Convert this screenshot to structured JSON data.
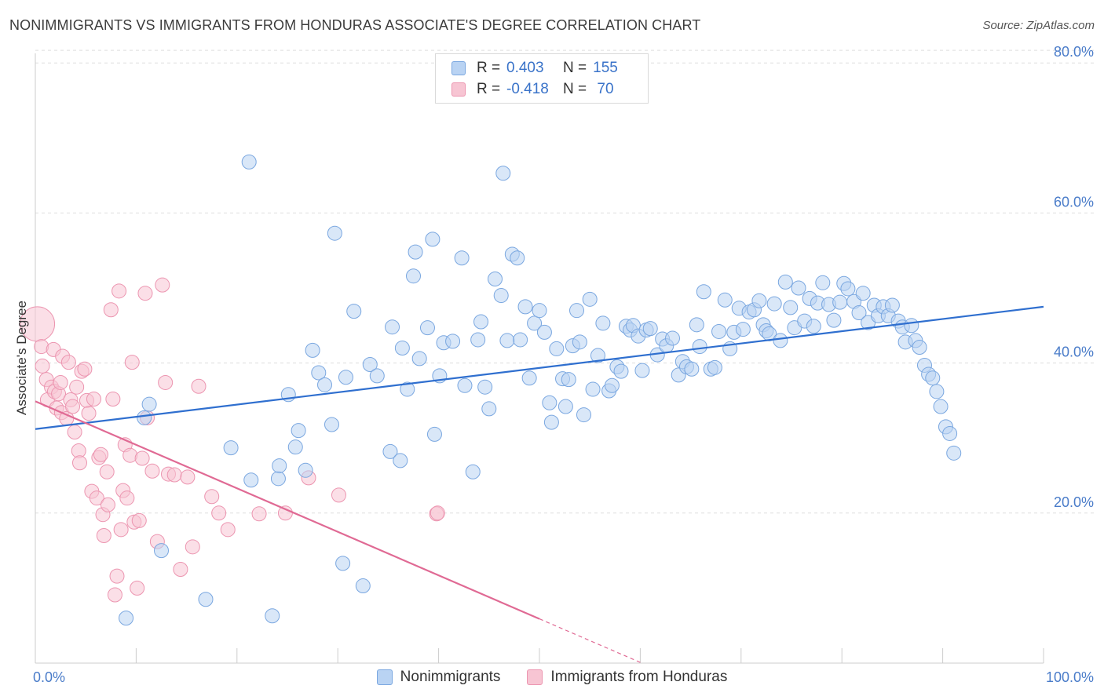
{
  "title": "NONIMMIGRANTS VS IMMIGRANTS FROM HONDURAS ASSOCIATE'S DEGREE CORRELATION CHART",
  "source": "Source: ZipAtlas.com",
  "legend": {
    "rows": [
      {
        "r_label": "R =",
        "r_value": "0.403",
        "n_label": "N =",
        "n_value": "155"
      },
      {
        "r_label": "R =",
        "r_value": "-0.418",
        "n_label": "N =",
        "n_value": "70"
      }
    ]
  },
  "bottom_legend": {
    "series1": "Nonimmigrants",
    "series2": "Immigrants from Honduras"
  },
  "colors": {
    "blue_fill": "#b9d3f3",
    "blue_stroke": "#7aa7e0",
    "blue_line": "#2f6fcf",
    "pink_fill": "#f7c5d3",
    "pink_stroke": "#ec95b0",
    "pink_line": "#e06a94",
    "tick_text": "#4a7cc9",
    "grid": "#dddddd"
  },
  "chart_data": {
    "type": "scatter",
    "title": "NONIMMIGRANTS VS IMMIGRANTS FROM HONDURAS ASSOCIATE'S DEGREE CORRELATION CHART",
    "xlabel": "",
    "ylabel": "Associate's Degree",
    "xlim": [
      0,
      100
    ],
    "ylim": [
      0,
      82
    ],
    "x_tick_labels": [
      "0.0%",
      "100.0%"
    ],
    "y_ticks": [
      20,
      40,
      60,
      80
    ],
    "y_tick_labels": [
      "20.0%",
      "40.0%",
      "60.0%",
      "80.0%"
    ],
    "grid": true,
    "series": [
      {
        "name": "Nonimmigrants",
        "R": 0.403,
        "N": 155,
        "trend": {
          "x": [
            0,
            100
          ],
          "y": [
            31.2,
            47.5
          ]
        },
        "points": [
          [
            11.3,
            34.5
          ],
          [
            10.8,
            32.7
          ],
          [
            12.5,
            15.0
          ],
          [
            9,
            6.0
          ],
          [
            16.9,
            8.5
          ],
          [
            19.4,
            28.7
          ],
          [
            21.2,
            66.8
          ],
          [
            21.4,
            24.4
          ],
          [
            23.5,
            6.3
          ],
          [
            24.1,
            24.6
          ],
          [
            24.2,
            26.3
          ],
          [
            25.1,
            35.8
          ],
          [
            25.8,
            28.8
          ],
          [
            26.1,
            31.0
          ],
          [
            26.8,
            25.7
          ],
          [
            27.5,
            41.7
          ],
          [
            28.1,
            38.7
          ],
          [
            28.7,
            37.1
          ],
          [
            29.4,
            31.8
          ],
          [
            29.7,
            57.3
          ],
          [
            30.5,
            13.3
          ],
          [
            30.8,
            38.1
          ],
          [
            31.6,
            46.9
          ],
          [
            32.5,
            10.3
          ],
          [
            33.2,
            39.8
          ],
          [
            33.9,
            38.3
          ],
          [
            35.2,
            28.2
          ],
          [
            35.4,
            44.8
          ],
          [
            36.2,
            27.0
          ],
          [
            36.4,
            42.0
          ],
          [
            36.9,
            36.5
          ],
          [
            37.5,
            51.6
          ],
          [
            37.7,
            54.8
          ],
          [
            38.1,
            40.6
          ],
          [
            38.9,
            44.7
          ],
          [
            39.4,
            56.5
          ],
          [
            39.6,
            30.5
          ],
          [
            40.1,
            38.3
          ],
          [
            40.5,
            42.7
          ],
          [
            41.4,
            42.9
          ],
          [
            42.3,
            54.0
          ],
          [
            42.6,
            37.0
          ],
          [
            43.4,
            25.5
          ],
          [
            43.9,
            43.1
          ],
          [
            44.2,
            45.5
          ],
          [
            44.6,
            36.8
          ],
          [
            45,
            33.9
          ],
          [
            45.6,
            51.2
          ],
          [
            46.2,
            49.0
          ],
          [
            46.4,
            65.3
          ],
          [
            46.8,
            43.0
          ],
          [
            47.3,
            54.5
          ],
          [
            47.8,
            54.0
          ],
          [
            48.1,
            43.1
          ],
          [
            48.6,
            47.5
          ],
          [
            49,
            38.0
          ],
          [
            49.5,
            45.3
          ],
          [
            50,
            47.0
          ],
          [
            50.5,
            44.1
          ],
          [
            51,
            34.7
          ],
          [
            51.2,
            32.1
          ],
          [
            51.7,
            41.9
          ],
          [
            52.3,
            37.9
          ],
          [
            52.6,
            34.2
          ],
          [
            52.9,
            37.8
          ],
          [
            53.3,
            42.3
          ],
          [
            53.7,
            47.0
          ],
          [
            54,
            42.8
          ],
          [
            54.4,
            33.1
          ],
          [
            55,
            48.5
          ],
          [
            55.3,
            36.5
          ],
          [
            55.8,
            41.0
          ],
          [
            56.3,
            45.3
          ],
          [
            56.9,
            36.3
          ],
          [
            57.2,
            37.0
          ],
          [
            57.7,
            39.5
          ],
          [
            58.1,
            38.9
          ],
          [
            58.6,
            44.9
          ],
          [
            59,
            44.4
          ],
          [
            59.3,
            45.0
          ],
          [
            59.8,
            43.6
          ],
          [
            60.2,
            39.0
          ],
          [
            60.6,
            44.4
          ],
          [
            61,
            44.6
          ],
          [
            61.7,
            41.1
          ],
          [
            62.2,
            43.2
          ],
          [
            62.6,
            42.3
          ],
          [
            63.2,
            43.3
          ],
          [
            63.8,
            38.4
          ],
          [
            64.2,
            40.2
          ],
          [
            64.6,
            39.5
          ],
          [
            65.1,
            39.2
          ],
          [
            65.6,
            45.1
          ],
          [
            65.9,
            42.2
          ],
          [
            66.3,
            49.5
          ],
          [
            67,
            39.2
          ],
          [
            67.4,
            39.4
          ],
          [
            67.8,
            44.2
          ],
          [
            68.4,
            48.4
          ],
          [
            68.9,
            41.9
          ],
          [
            69.3,
            44.1
          ],
          [
            69.8,
            47.3
          ],
          [
            70.2,
            44.5
          ],
          [
            70.8,
            46.8
          ],
          [
            71.3,
            47.1
          ],
          [
            71.8,
            48.3
          ],
          [
            72.2,
            45.1
          ],
          [
            72.5,
            44.3
          ],
          [
            72.8,
            43.9
          ],
          [
            73.3,
            47.9
          ],
          [
            73.9,
            43.0
          ],
          [
            74.4,
            50.8
          ],
          [
            74.9,
            47.4
          ],
          [
            75.3,
            44.7
          ],
          [
            75.7,
            50.0
          ],
          [
            76.3,
            45.6
          ],
          [
            76.8,
            48.6
          ],
          [
            77.2,
            44.9
          ],
          [
            77.6,
            48.0
          ],
          [
            78.1,
            50.7
          ],
          [
            78.7,
            47.8
          ],
          [
            79.2,
            45.7
          ],
          [
            79.8,
            48.1
          ],
          [
            80.2,
            50.6
          ],
          [
            80.6,
            49.9
          ],
          [
            81.2,
            48.2
          ],
          [
            81.7,
            46.7
          ],
          [
            82.1,
            49.3
          ],
          [
            82.6,
            45.4
          ],
          [
            83.2,
            47.7
          ],
          [
            83.6,
            46.3
          ],
          [
            84.1,
            47.5
          ],
          [
            84.6,
            46.3
          ],
          [
            85,
            47.7
          ],
          [
            85.6,
            45.6
          ],
          [
            86,
            44.8
          ],
          [
            86.3,
            42.8
          ],
          [
            86.9,
            45.0
          ],
          [
            87.3,
            43.0
          ],
          [
            87.7,
            42.1
          ],
          [
            88.2,
            39.7
          ],
          [
            88.6,
            38.5
          ],
          [
            89,
            38.0
          ],
          [
            89.4,
            36.2
          ],
          [
            89.8,
            34.2
          ],
          [
            90.3,
            31.5
          ],
          [
            90.7,
            30.6
          ],
          [
            91.1,
            28.0
          ]
        ]
      },
      {
        "name": "Immigrants from Honduras",
        "R": -0.418,
        "N": 70,
        "trend": {
          "x": [
            0,
            50
          ],
          "y": [
            34.9,
            5.9
          ]
        },
        "trend_dashed": {
          "x": [
            50,
            60
          ],
          "y": [
            5.9,
            0.1
          ]
        },
        "points": [
          [
            0.2,
            45.2
          ],
          [
            0.6,
            42.2
          ],
          [
            0.7,
            39.6
          ],
          [
            1.1,
            37.8
          ],
          [
            1.2,
            35.1
          ],
          [
            1.6,
            36.8
          ],
          [
            1.8,
            41.8
          ],
          [
            1.9,
            36.2
          ],
          [
            2.1,
            34.0
          ],
          [
            2.3,
            35.9
          ],
          [
            2.5,
            37.4
          ],
          [
            2.6,
            33.4
          ],
          [
            2.7,
            40.9
          ],
          [
            3.1,
            32.6
          ],
          [
            3.3,
            40.1
          ],
          [
            3.5,
            35.1
          ],
          [
            3.7,
            34.2
          ],
          [
            3.9,
            30.8
          ],
          [
            4.1,
            36.8
          ],
          [
            4.3,
            28.3
          ],
          [
            4.4,
            26.7
          ],
          [
            4.6,
            38.9
          ],
          [
            4.9,
            39.2
          ],
          [
            5.1,
            35.0
          ],
          [
            5.3,
            33.3
          ],
          [
            5.6,
            22.9
          ],
          [
            5.8,
            35.2
          ],
          [
            6.1,
            22.0
          ],
          [
            6.3,
            27.4
          ],
          [
            6.5,
            27.8
          ],
          [
            6.7,
            19.8
          ],
          [
            6.8,
            17.0
          ],
          [
            7.1,
            25.5
          ],
          [
            7.2,
            21.1
          ],
          [
            7.5,
            47.1
          ],
          [
            7.7,
            35.2
          ],
          [
            7.9,
            9.1
          ],
          [
            8.1,
            11.6
          ],
          [
            8.3,
            49.6
          ],
          [
            8.5,
            17.8
          ],
          [
            8.7,
            23.0
          ],
          [
            8.9,
            29.1
          ],
          [
            9.1,
            22.0
          ],
          [
            9.4,
            27.7
          ],
          [
            9.6,
            40.1
          ],
          [
            9.8,
            18.8
          ],
          [
            10.1,
            10.0
          ],
          [
            10.3,
            19.0
          ],
          [
            10.6,
            27.3
          ],
          [
            10.9,
            49.3
          ],
          [
            11.1,
            32.7
          ],
          [
            11.6,
            25.6
          ],
          [
            12.1,
            16.2
          ],
          [
            12.6,
            50.4
          ],
          [
            12.9,
            37.4
          ],
          [
            13.2,
            25.2
          ],
          [
            13.8,
            25.1
          ],
          [
            14.4,
            12.5
          ],
          [
            15.1,
            24.8
          ],
          [
            15.6,
            15.5
          ],
          [
            16.2,
            36.9
          ],
          [
            17.5,
            22.2
          ],
          [
            18.2,
            20.0
          ],
          [
            19.1,
            17.8
          ],
          [
            22.2,
            19.9
          ],
          [
            24.8,
            20.0
          ],
          [
            27.1,
            24.7
          ],
          [
            30.1,
            22.4
          ],
          [
            39.8,
            19.9
          ],
          [
            39.9,
            20.0
          ]
        ]
      }
    ]
  }
}
